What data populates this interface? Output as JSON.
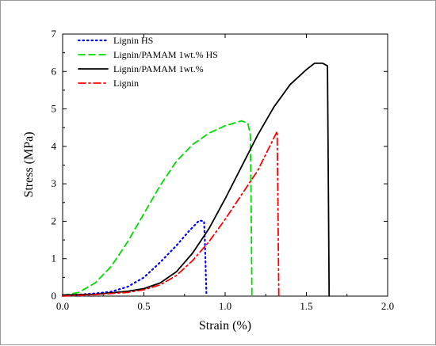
{
  "chart_data": {
    "type": "line",
    "xlabel": "Strain (%)",
    "ylabel": "Stress (MPa)",
    "xlim": [
      0.0,
      2.0
    ],
    "ylim": [
      0,
      7
    ],
    "xticks": [
      "0.0",
      "0.5",
      "1.0",
      "1.5",
      "2.0"
    ],
    "yticks": [
      "0",
      "1",
      "2",
      "3",
      "4",
      "5",
      "6",
      "7"
    ],
    "grid": false,
    "legend_position": "top-left",
    "series": [
      {
        "name": "Lignin HS",
        "color": "#0000ff",
        "style": "dotted",
        "points": [
          [
            0.0,
            0.02
          ],
          [
            0.1,
            0.04
          ],
          [
            0.2,
            0.07
          ],
          [
            0.3,
            0.12
          ],
          [
            0.4,
            0.25
          ],
          [
            0.5,
            0.5
          ],
          [
            0.6,
            0.9
          ],
          [
            0.7,
            1.35
          ],
          [
            0.78,
            1.75
          ],
          [
            0.84,
            2.02
          ],
          [
            0.87,
            2.0
          ],
          [
            0.875,
            1.5
          ],
          [
            0.88,
            0.8
          ],
          [
            0.885,
            0.0
          ]
        ]
      },
      {
        "name": "Lignin/PAMAM 1wt.% HS",
        "color": "#00dd00",
        "style": "dashed",
        "points": [
          [
            0.0,
            0.02
          ],
          [
            0.1,
            0.1
          ],
          [
            0.2,
            0.35
          ],
          [
            0.3,
            0.8
          ],
          [
            0.4,
            1.45
          ],
          [
            0.5,
            2.2
          ],
          [
            0.6,
            2.95
          ],
          [
            0.7,
            3.6
          ],
          [
            0.8,
            4.05
          ],
          [
            0.9,
            4.35
          ],
          [
            1.0,
            4.55
          ],
          [
            1.1,
            4.68
          ],
          [
            1.14,
            4.62
          ],
          [
            1.155,
            4.3
          ],
          [
            1.16,
            2.5
          ],
          [
            1.165,
            0.0
          ]
        ]
      },
      {
        "name": "Lignin/PAMAM 1wt.%",
        "color": "#000000",
        "style": "solid",
        "points": [
          [
            0.0,
            0.03
          ],
          [
            0.2,
            0.05
          ],
          [
            0.4,
            0.13
          ],
          [
            0.5,
            0.2
          ],
          [
            0.6,
            0.35
          ],
          [
            0.7,
            0.65
          ],
          [
            0.8,
            1.15
          ],
          [
            0.9,
            1.8
          ],
          [
            1.0,
            2.6
          ],
          [
            1.1,
            3.45
          ],
          [
            1.2,
            4.3
          ],
          [
            1.3,
            5.05
          ],
          [
            1.4,
            5.65
          ],
          [
            1.5,
            6.05
          ],
          [
            1.55,
            6.22
          ],
          [
            1.6,
            6.22
          ],
          [
            1.63,
            6.15
          ],
          [
            1.635,
            3.0
          ],
          [
            1.64,
            0.0
          ]
        ]
      },
      {
        "name": "Lignin",
        "color": "#ff0000",
        "style": "dashdot",
        "points": [
          [
            0.0,
            0.0
          ],
          [
            0.2,
            0.04
          ],
          [
            0.4,
            0.1
          ],
          [
            0.5,
            0.17
          ],
          [
            0.6,
            0.3
          ],
          [
            0.7,
            0.55
          ],
          [
            0.8,
            0.95
          ],
          [
            0.9,
            1.45
          ],
          [
            1.0,
            2.05
          ],
          [
            1.1,
            2.7
          ],
          [
            1.2,
            3.35
          ],
          [
            1.28,
            4.05
          ],
          [
            1.32,
            4.4
          ],
          [
            1.325,
            2.5
          ],
          [
            1.33,
            0.0
          ]
        ]
      }
    ]
  }
}
